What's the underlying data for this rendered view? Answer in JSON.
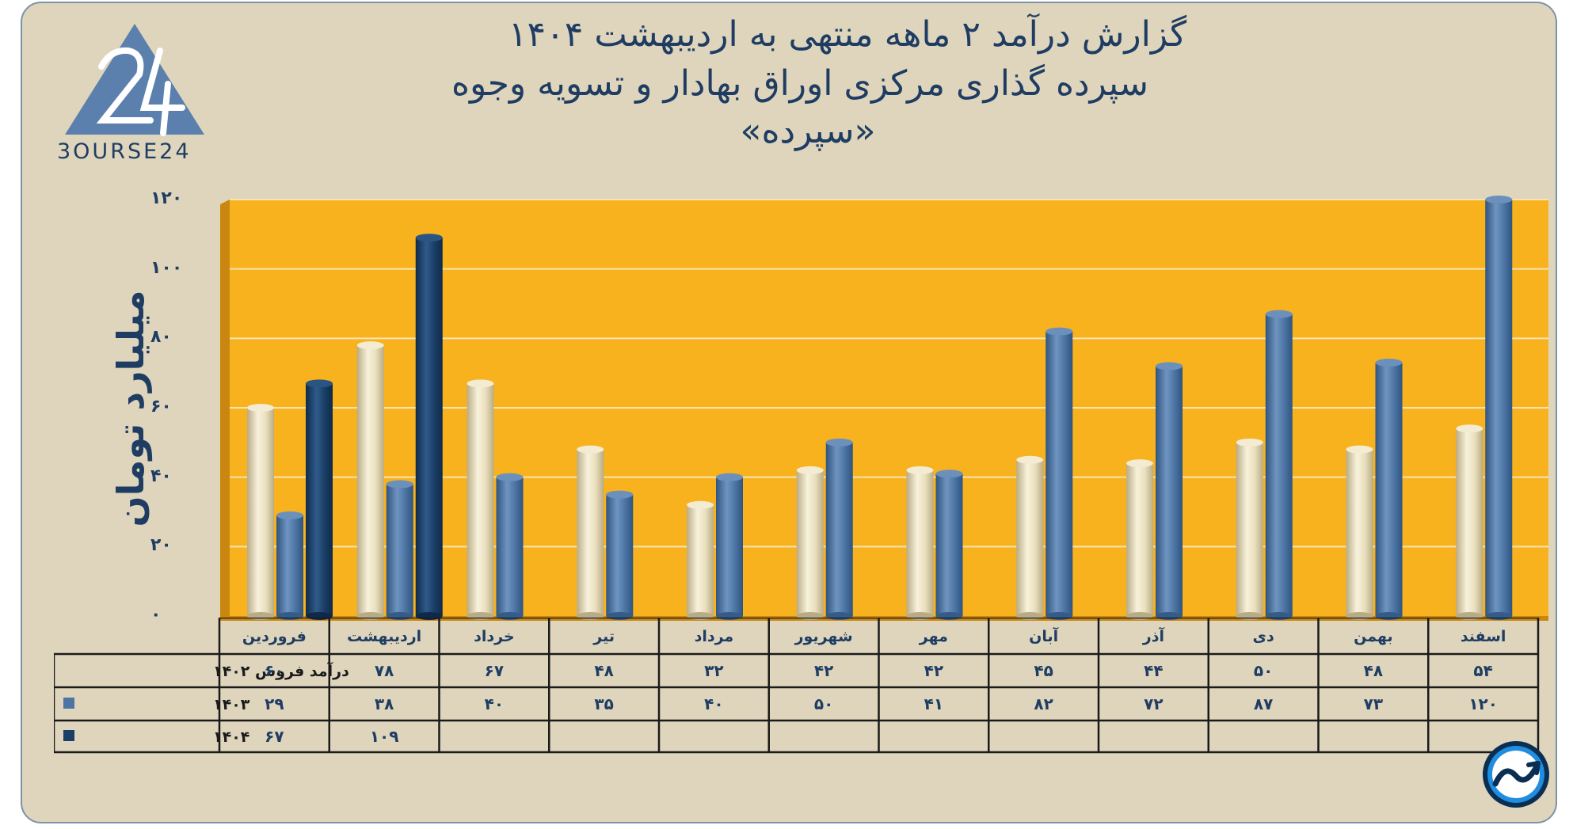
{
  "title": {
    "line1": "گزارش  درآمد ۲ ماهه منتهی به اردیبهشت ۱۴۰۴",
    "line2": "سپرده گذاری مرکزی اوراق بهادار و تسویه وجوه",
    "line3": "«سپرده»"
  },
  "logo": {
    "text": "3OURSE24",
    "icon": "bourse24-triangle-logo"
  },
  "corner_icon": "trend-arrow-icon",
  "colors": {
    "background": "#ded5bc",
    "plot_area": "#f7b21e",
    "series_1402": "#e9dfbd",
    "series_1403": "#4d75a4",
    "series_1404": "#1a3e66",
    "text": "#1f3d63"
  },
  "chart_data": {
    "type": "bar",
    "title": "گزارش  درآمد ۲ ماهه منتهی به اردیبهشت ۱۴۰۴",
    "ylabel": "میلیارد تومان",
    "ylim": [
      0,
      120
    ],
    "yticks": [
      "۰",
      "۲۰",
      "۴۰",
      "۶۰",
      "۸۰",
      "۱۰۰",
      "۱۲۰"
    ],
    "ytick_values": [
      0,
      20,
      40,
      60,
      80,
      100,
      120
    ],
    "categories": [
      "فروردین",
      "اردیبهشت",
      "خرداد",
      "تیر",
      "مرداد",
      "شهریور",
      "مهر",
      "آبان",
      "آذر",
      "دی",
      "بهمن",
      "اسفند"
    ],
    "series": [
      {
        "name": "درآمد فروش ۱۴۰۲",
        "values": [
          60,
          78,
          67,
          48,
          32,
          42,
          42,
          45,
          44,
          50,
          48,
          54
        ],
        "labels": [
          "۶۰",
          "۷۸",
          "۶۷",
          "۴۸",
          "۳۲",
          "۴۲",
          "۴۲",
          "۴۵",
          "۴۴",
          "۵۰",
          "۴۸",
          "۵۴"
        ]
      },
      {
        "name": "۱۴۰۳",
        "values": [
          29,
          38,
          40,
          35,
          40,
          50,
          41,
          82,
          72,
          87,
          73,
          120
        ],
        "labels": [
          "۲۹",
          "۳۸",
          "۴۰",
          "۳۵",
          "۴۰",
          "۵۰",
          "۴۱",
          "۸۲",
          "۷۲",
          "۸۷",
          "۷۳",
          "۱۲۰"
        ]
      },
      {
        "name": "۱۴۰۴",
        "values": [
          67,
          109,
          null,
          null,
          null,
          null,
          null,
          null,
          null,
          null,
          null,
          null
        ],
        "labels": [
          "۶۷",
          "۱۰۹",
          "",
          "",
          "",
          "",
          "",
          "",
          "",
          "",
          "",
          ""
        ]
      }
    ],
    "grid": true,
    "legend": "table-below"
  }
}
